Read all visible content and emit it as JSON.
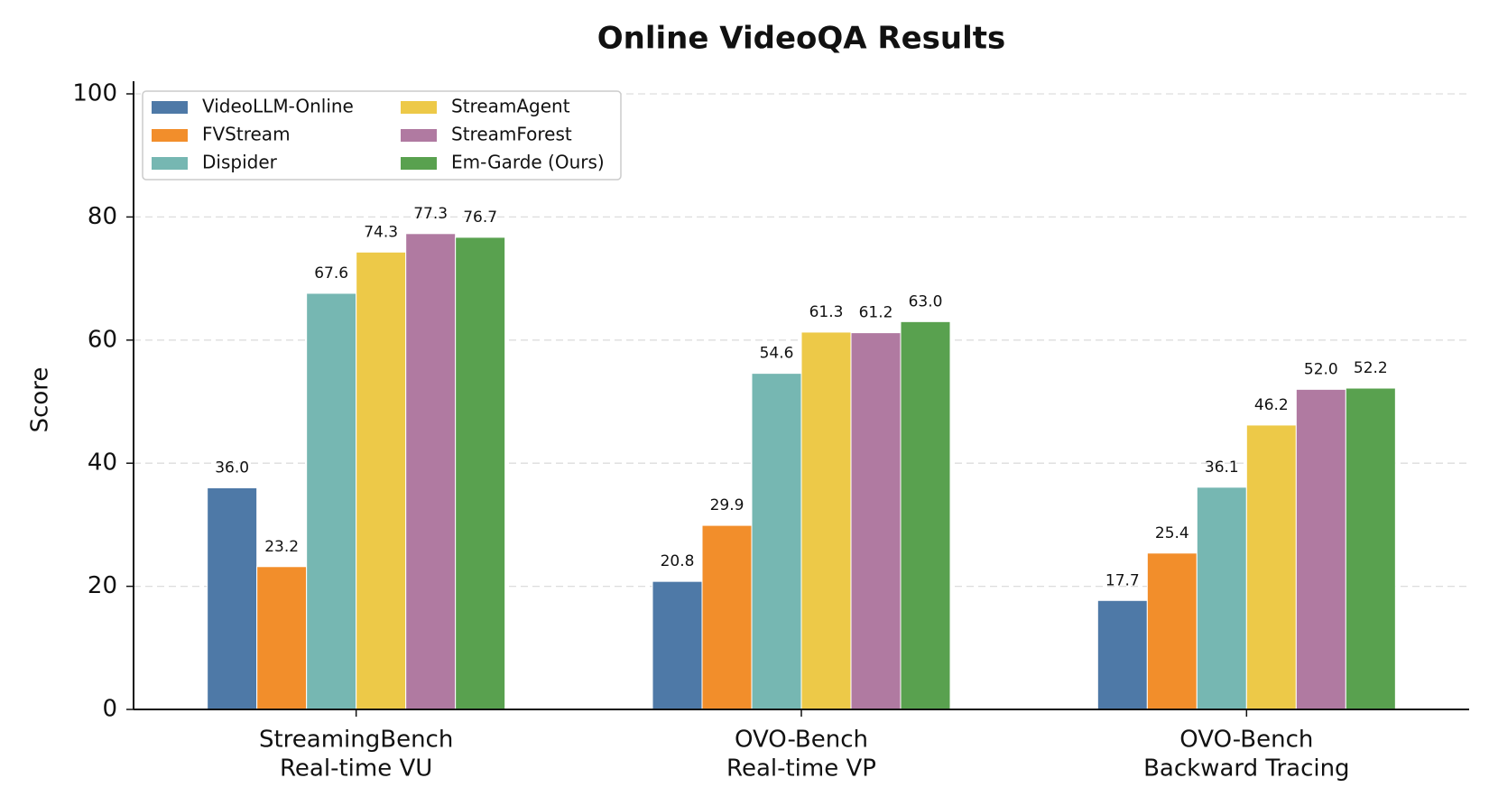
{
  "chart_data": {
    "type": "bar",
    "title": "Online VideoQA Results",
    "y_label": "Score",
    "categories": [
      [
        "StreamingBench",
        "Real-time VU"
      ],
      [
        "OVO-Bench",
        "Real-time VP"
      ],
      [
        "OVO-Bench",
        "Backward Tracing"
      ]
    ],
    "series": [
      {
        "name": "VideoLLM-Online",
        "color": "#4e79a7",
        "values": [
          36.0,
          20.8,
          17.7
        ],
        "value_labels": [
          "36.0",
          "20.8",
          "17.7"
        ]
      },
      {
        "name": "FVStream",
        "color": "#f28e2b",
        "values": [
          23.2,
          29.9,
          25.4
        ],
        "value_labels": [
          "23.2",
          "29.9",
          "25.4"
        ]
      },
      {
        "name": "Dispider",
        "color": "#76b7b2",
        "values": [
          67.6,
          54.6,
          36.1
        ],
        "value_labels": [
          "67.6",
          "54.6",
          "36.1"
        ]
      },
      {
        "name": "StreamAgent",
        "color": "#edc948",
        "values": [
          74.3,
          61.3,
          46.2
        ],
        "value_labels": [
          "74.3",
          "61.3",
          "46.2"
        ]
      },
      {
        "name": "StreamForest",
        "color": "#b07aa1",
        "values": [
          77.3,
          61.2,
          52.0
        ],
        "value_labels": [
          "77.3",
          "61.2",
          "52.0"
        ]
      },
      {
        "name": "Em-Garde (Ours)",
        "color": "#59a14f",
        "values": [
          76.7,
          63.0,
          52.2
        ],
        "value_labels": [
          "76.7",
          "63.0",
          "52.2"
        ]
      }
    ],
    "ylim": [
      0,
      100
    ],
    "yticks": [
      0,
      20,
      40,
      60,
      80,
      100
    ],
    "grid": true,
    "legend": "upper left"
  }
}
